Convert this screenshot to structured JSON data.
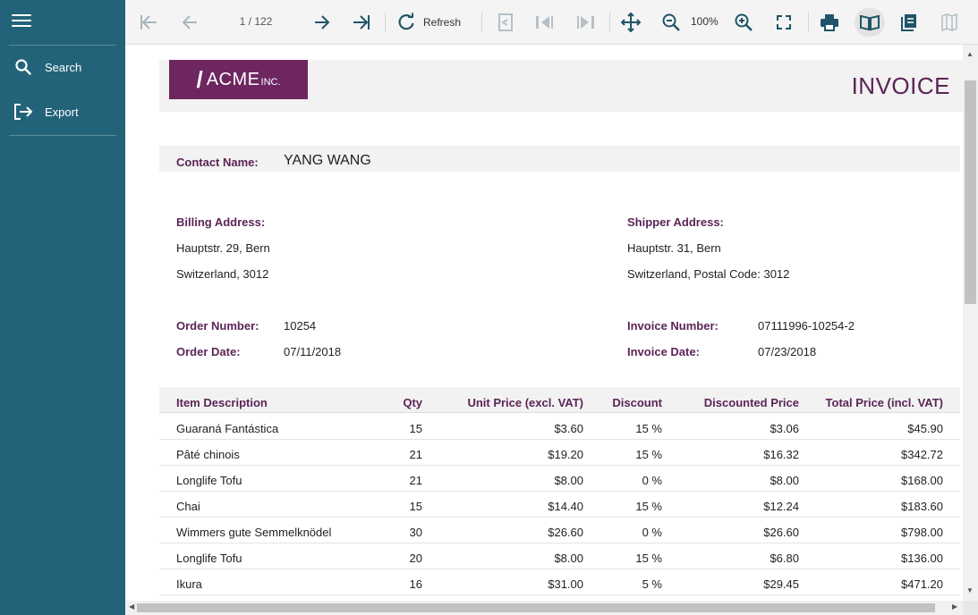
{
  "sidebar": {
    "items": [
      {
        "label": "Search",
        "icon": "search-icon"
      },
      {
        "label": "Export",
        "icon": "export-icon"
      }
    ]
  },
  "toolbar": {
    "page_indicator": "1 / 122",
    "refresh_label": "Refresh",
    "zoom_level": "100%"
  },
  "invoice": {
    "logo_text": "ACME",
    "logo_suffix": "INC.",
    "title": "INVOICE",
    "contact_label": "Contact Name:",
    "contact_name": "YANG WANG",
    "billing_label": "Billing Address:",
    "billing_line1": "Hauptstr. 29, Bern",
    "billing_line2": "Switzerland, 3012",
    "shipper_label": "Shipper Address:",
    "shipper_line1": "Hauptstr. 31, Bern",
    "shipper_line2": "Switzerland, Postal Code: 3012",
    "order_number_label": "Order Number:",
    "order_number": "10254",
    "order_date_label": "Order Date:",
    "order_date": "07/11/2018",
    "invoice_number_label": "Invoice Number:",
    "invoice_number": "07111996-10254-2",
    "invoice_date_label": "Invoice Date:",
    "invoice_date": "07/23/2018"
  },
  "table": {
    "headers": [
      "Item Description",
      "Qty",
      "Unit Price (excl. VAT)",
      "Discount",
      "Discounted Price",
      "Total Price (incl. VAT)"
    ],
    "rows": [
      [
        "Guaraná Fantástica",
        "15",
        "$3.60",
        "15 %",
        "$3.06",
        "$45.90"
      ],
      [
        "Pâté chinois",
        "21",
        "$19.20",
        "15 %",
        "$16.32",
        "$342.72"
      ],
      [
        "Longlife Tofu",
        "21",
        "$8.00",
        "0 %",
        "$8.00",
        "$168.00"
      ],
      [
        "Chai",
        "15",
        "$14.40",
        "15 %",
        "$12.24",
        "$183.60"
      ],
      [
        "Wimmers gute Semmelknödel",
        "30",
        "$26.60",
        "0 %",
        "$26.60",
        "$798.00"
      ],
      [
        "Longlife Tofu",
        "20",
        "$8.00",
        "15 %",
        "$6.80",
        "$136.00"
      ],
      [
        "Ikura",
        "16",
        "$31.00",
        "5 %",
        "$29.45",
        "$471.20"
      ]
    ]
  },
  "colors": {
    "sidebar_bg": "#236379",
    "accent_purple": "#5b2457",
    "logo_bg": "#6e2660"
  }
}
